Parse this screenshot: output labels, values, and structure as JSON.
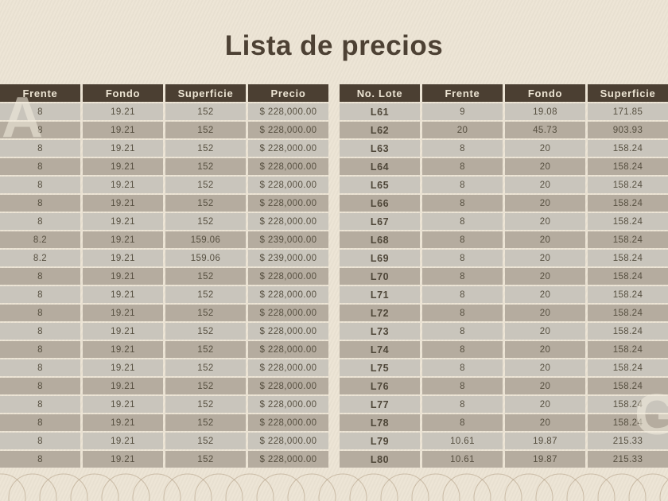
{
  "page": {
    "title": "Lista de precios"
  },
  "colors": {
    "background": "#ece4d4",
    "header_bg": "#4b3f32",
    "header_text": "#ece4d3",
    "row_light": "#c9c5bc",
    "row_dark": "#b5ac9f",
    "cell_text": "#575041",
    "title_text": "#4d4134",
    "pattern_stroke": "#9a8265",
    "watermark_text": "#f4eee0"
  },
  "watermarks": {
    "left_letter": "A",
    "right_letter": "G"
  },
  "left_table": {
    "headers": [
      "Frente",
      "Fondo",
      "Superficie",
      "Precio"
    ],
    "rows": [
      [
        "8",
        "19.21",
        "152",
        "$ 228,000.00"
      ],
      [
        "8",
        "19.21",
        "152",
        "$ 228,000.00"
      ],
      [
        "8",
        "19.21",
        "152",
        "$ 228,000.00"
      ],
      [
        "8",
        "19.21",
        "152",
        "$ 228,000.00"
      ],
      [
        "8",
        "19.21",
        "152",
        "$ 228,000.00"
      ],
      [
        "8",
        "19.21",
        "152",
        "$ 228,000.00"
      ],
      [
        "8",
        "19.21",
        "152",
        "$ 228,000.00"
      ],
      [
        "8.2",
        "19.21",
        "159.06",
        "$ 239,000.00"
      ],
      [
        "8.2",
        "19.21",
        "159.06",
        "$ 239,000.00"
      ],
      [
        "8",
        "19.21",
        "152",
        "$ 228,000.00"
      ],
      [
        "8",
        "19.21",
        "152",
        "$ 228,000.00"
      ],
      [
        "8",
        "19.21",
        "152",
        "$ 228,000.00"
      ],
      [
        "8",
        "19.21",
        "152",
        "$ 228,000.00"
      ],
      [
        "8",
        "19.21",
        "152",
        "$ 228,000.00"
      ],
      [
        "8",
        "19.21",
        "152",
        "$ 228,000.00"
      ],
      [
        "8",
        "19.21",
        "152",
        "$ 228,000.00"
      ],
      [
        "8",
        "19.21",
        "152",
        "$ 228,000.00"
      ],
      [
        "8",
        "19.21",
        "152",
        "$ 228,000.00"
      ],
      [
        "8",
        "19.21",
        "152",
        "$ 228,000.00"
      ],
      [
        "8",
        "19.21",
        "152",
        "$ 228,000.00"
      ]
    ]
  },
  "right_table": {
    "headers": [
      "No. Lote",
      "Frente",
      "Fondo",
      "Superficie"
    ],
    "rows": [
      [
        "L61",
        "9",
        "19.08",
        "171.85"
      ],
      [
        "L62",
        "20",
        "45.73",
        "903.93"
      ],
      [
        "L63",
        "8",
        "20",
        "158.24"
      ],
      [
        "L64",
        "8",
        "20",
        "158.24"
      ],
      [
        "L65",
        "8",
        "20",
        "158.24"
      ],
      [
        "L66",
        "8",
        "20",
        "158.24"
      ],
      [
        "L67",
        "8",
        "20",
        "158.24"
      ],
      [
        "L68",
        "8",
        "20",
        "158.24"
      ],
      [
        "L69",
        "8",
        "20",
        "158.24"
      ],
      [
        "L70",
        "8",
        "20",
        "158.24"
      ],
      [
        "L71",
        "8",
        "20",
        "158.24"
      ],
      [
        "L72",
        "8",
        "20",
        "158.24"
      ],
      [
        "L73",
        "8",
        "20",
        "158.24"
      ],
      [
        "L74",
        "8",
        "20",
        "158.24"
      ],
      [
        "L75",
        "8",
        "20",
        "158.24"
      ],
      [
        "L76",
        "8",
        "20",
        "158.24"
      ],
      [
        "L77",
        "8",
        "20",
        "158.24"
      ],
      [
        "L78",
        "8",
        "20",
        "158.24"
      ],
      [
        "L79",
        "10.61",
        "19.87",
        "215.33"
      ],
      [
        "L80",
        "10.61",
        "19.87",
        "215.33"
      ]
    ]
  }
}
